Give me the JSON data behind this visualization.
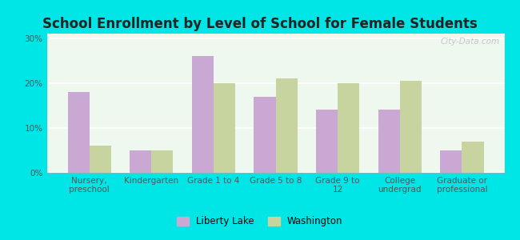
{
  "title": "School Enrollment by Level of School for Female Students",
  "categories": [
    "Nursery,\npreschool",
    "Kindergarten",
    "Grade 1 to 4",
    "Grade 5 to 8",
    "Grade 9 to\n12",
    "College\nundergrad",
    "Graduate or\nprofessional"
  ],
  "liberty_lake": [
    18,
    5,
    26,
    17,
    14,
    14,
    5
  ],
  "washington": [
    6,
    5,
    20,
    21,
    20,
    20.5,
    7
  ],
  "liberty_lake_color": "#c9a8d4",
  "washington_color": "#c8d4a0",
  "background_outer": "#00e5e5",
  "background_inner": "#eef8ee",
  "yticks": [
    0,
    10,
    20,
    30
  ],
  "ylim": [
    0,
    31
  ],
  "legend_labels": [
    "Liberty Lake",
    "Washington"
  ],
  "bar_width": 0.35,
  "title_fontsize": 12,
  "tick_fontsize": 7.5,
  "legend_fontsize": 8.5,
  "watermark": "City-Data.com"
}
